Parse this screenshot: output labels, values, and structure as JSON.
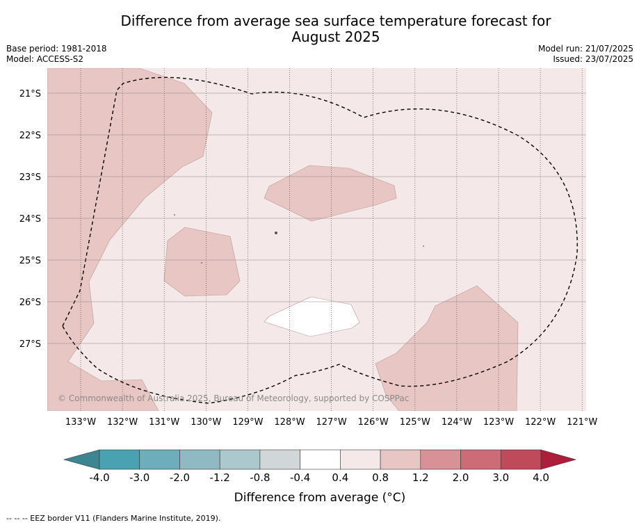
{
  "header": {
    "title_line1": "Difference from average sea surface temperature forecast for",
    "title_line2": "August 2025",
    "base_period": "Base period: 1981-2018",
    "model": "Model: ACCESS-S2",
    "model_run": "Model run: 21/07/2025",
    "issued": "Issued: 23/07/2025"
  },
  "map": {
    "background_color": "#f5e8e8",
    "copyright": "© Commonwealth of Australia 2025, Bureau of Meteorology, supported by COSPPac",
    "lon_ticks": [
      "133°W",
      "132°W",
      "131°W",
      "130°W",
      "129°W",
      "128°W",
      "127°W",
      "126°W",
      "125°W",
      "124°W",
      "123°W",
      "122°W",
      "121°W"
    ],
    "lat_ticks": [
      "21°S",
      "22°S",
      "23°S",
      "24°S",
      "25°S",
      "26°S",
      "27°S"
    ],
    "regions": [
      {
        "category": "0.8 to 1.2",
        "color": "#e8c6c4",
        "area": "north-west"
      },
      {
        "category": "0.8 to 1.2",
        "color": "#e8c6c4",
        "area": "west"
      },
      {
        "category": "0.8 to 1.2",
        "color": "#e8c6c4",
        "area": "centre-north"
      },
      {
        "category": "0.8 to 1.2",
        "color": "#e8c6c4",
        "area": "south-east"
      },
      {
        "category": "-0.4 to 0.4",
        "color": "#ffffff",
        "area": "centre-west"
      },
      {
        "category": "-0.4 to 0.4",
        "color": "#ffffff",
        "area": "centre-south"
      }
    ],
    "border_style": "dashed"
  },
  "colorbar": {
    "title": "Difference from average (°C)",
    "tick_labels": [
      "-4.0",
      "-3.0",
      "-2.0",
      "-1.2",
      "-0.8",
      "-0.4",
      "0.4",
      "0.8",
      "1.2",
      "2.0",
      "3.0",
      "4.0"
    ],
    "colors": [
      "#4aa1b1",
      "#6eadbb",
      "#8fb9c3",
      "#abc8cc",
      "#d1d7d9",
      "#ffffff",
      "#f5e8e8",
      "#e8c6c4",
      "#d99198",
      "#cd6c77",
      "#bf4a5a"
    ],
    "low_extend_color": "#3d8691",
    "high_extend_color": "#ac1e3c"
  },
  "footnote": "--  --  -- EEZ border V11 (Flanders Marine Institute, 2019)."
}
